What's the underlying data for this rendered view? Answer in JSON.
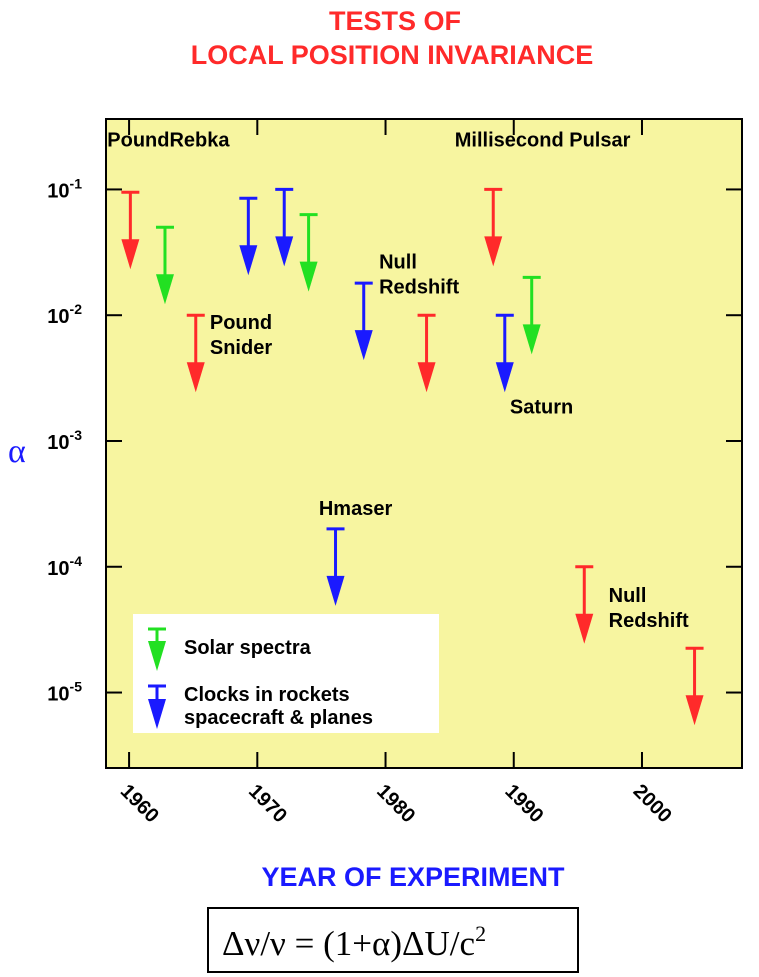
{
  "chart_data": {
    "type": "scatter",
    "title_line1": "TESTS OF",
    "title_line2": "LOCAL POSITION INVARIANCE",
    "xlabel": "YEAR OF EXPERIMENT",
    "ylabel": "α",
    "xlim": [
      1958.2,
      2007.8
    ],
    "ylim_log10": [
      -5.6,
      -0.44
    ],
    "y_scale": "log",
    "grid": false,
    "x_ticks": [
      1960,
      1970,
      1980,
      1990,
      2000
    ],
    "x_tick_labels": [
      "1960",
      "1970",
      "1980",
      "1990",
      "2000"
    ],
    "y_ticks": [
      -1,
      -2,
      -3,
      -4,
      -5
    ],
    "y_tick_labels": [
      "10-1",
      "10-2",
      "10-3",
      "10-4",
      "10-5"
    ],
    "colors": {
      "red": "#ff2a2a",
      "green": "#22e022",
      "blue": "#1a1aff",
      "plot_bg": "#f7f5a0",
      "title": "#ff2a2a",
      "xlabel": "#1a1aff",
      "ylabel": "#1a1aff"
    },
    "points": [
      {
        "year": 1960.1,
        "alpha_upper_limit": 0.095,
        "color": "red"
      },
      {
        "year": 1962.8,
        "alpha_upper_limit": 0.05,
        "color": "green"
      },
      {
        "year": 1965.2,
        "alpha_upper_limit": 0.01,
        "color": "red"
      },
      {
        "year": 1969.3,
        "alpha_upper_limit": 0.085,
        "color": "blue"
      },
      {
        "year": 1972.1,
        "alpha_upper_limit": 0.1,
        "color": "blue"
      },
      {
        "year": 1974.0,
        "alpha_upper_limit": 0.063,
        "color": "green"
      },
      {
        "year": 1976.1,
        "alpha_upper_limit": 0.0002,
        "color": "blue"
      },
      {
        "year": 1978.3,
        "alpha_upper_limit": 0.018,
        "color": "blue"
      },
      {
        "year": 1983.2,
        "alpha_upper_limit": 0.01,
        "color": "red"
      },
      {
        "year": 1988.4,
        "alpha_upper_limit": 0.1,
        "color": "red"
      },
      {
        "year": 1989.3,
        "alpha_upper_limit": 0.01,
        "color": "blue"
      },
      {
        "year": 1991.4,
        "alpha_upper_limit": 0.02,
        "color": "green"
      },
      {
        "year": 1995.5,
        "alpha_upper_limit": 0.0001,
        "color": "red"
      },
      {
        "year": 2004.1,
        "alpha_upper_limit": 2.25e-05,
        "color": "red"
      }
    ],
    "annotations": [
      {
        "id": "pound-rebka",
        "lines": [
          "PoundRebka"
        ],
        "year": 1958.3,
        "log_alpha": -0.66
      },
      {
        "id": "pound-snider",
        "lines": [
          "Pound",
          "Snider"
        ],
        "year": 1966.3,
        "log_alpha": -2.11
      },
      {
        "id": "null-redshift-1",
        "lines": [
          "Null",
          "Redshift"
        ],
        "year": 1979.5,
        "log_alpha": -1.63
      },
      {
        "id": "millisecond-pulsar",
        "lines": [
          "Millisecond Pulsar"
        ],
        "year": 1985.4,
        "log_alpha": -0.66
      },
      {
        "id": "saturn",
        "lines": [
          "Saturn"
        ],
        "year": 1989.7,
        "log_alpha": -2.78
      },
      {
        "id": "hmaser",
        "lines": [
          "Hmaser"
        ],
        "year": 1974.8,
        "log_alpha": -3.59
      },
      {
        "id": "null-redshift-2",
        "lines": [
          "Null",
          "Redshift"
        ],
        "year": 1997.4,
        "log_alpha": -4.28
      }
    ],
    "legend": {
      "placement": "bottom-left",
      "entries": [
        {
          "label": "Solar spectra",
          "color": "green"
        },
        {
          "label": "Clocks in rockets",
          "label2": "spacecraft & planes",
          "color": "blue"
        }
      ]
    },
    "formula": "Δν/ν = (1+α)ΔU/c²",
    "formula_parts": {
      "lhs": "Δν/ν = (1+α)ΔU/c",
      "sup": "2"
    }
  }
}
